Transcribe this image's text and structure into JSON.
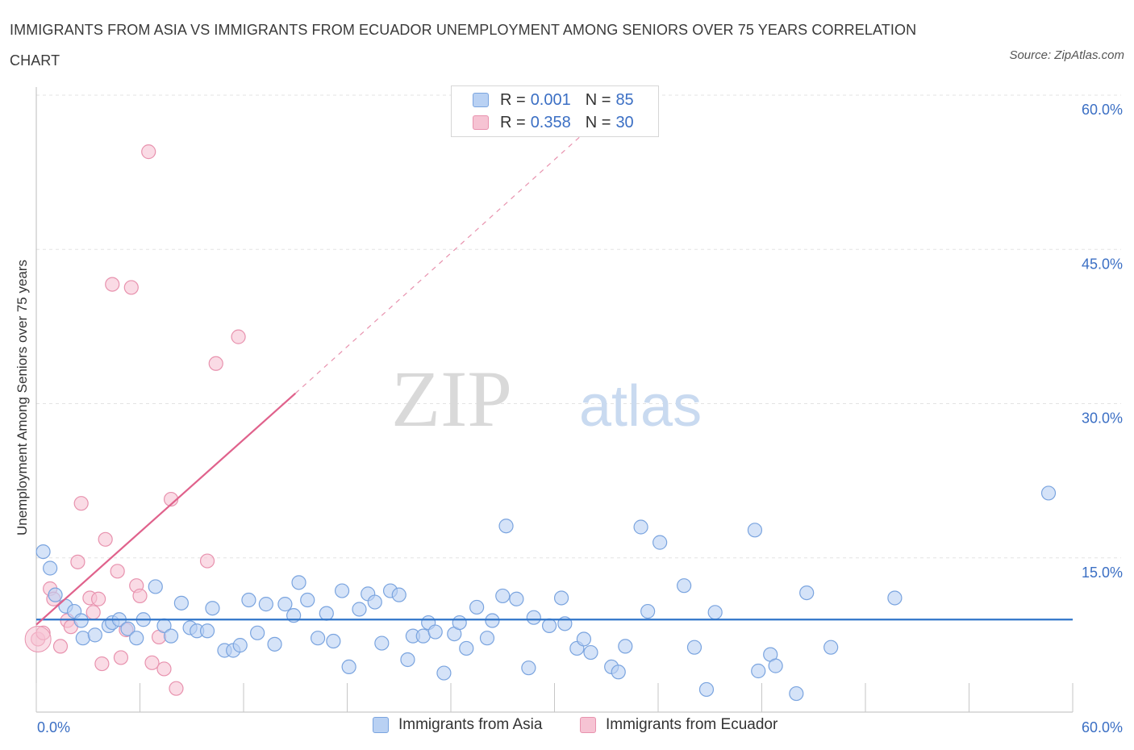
{
  "header": {
    "title": "IMMIGRANTS FROM ASIA VS IMMIGRANTS FROM ECUADOR UNEMPLOYMENT AMONG SENIORS OVER 75 YEARS CORRELATION CHART",
    "source": "Source: ZipAtlas.com"
  },
  "watermark": {
    "zip": "ZIP",
    "atlas": "atlas"
  },
  "legend": {
    "rows": [
      {
        "r_label": "R = ",
        "r_value": "0.001",
        "n_label": "N = ",
        "n_value": "85"
      },
      {
        "r_label": "R = ",
        "r_value": "0.358",
        "n_label": "N = ",
        "n_value": "30"
      }
    ]
  },
  "colors": {
    "asia_fill": "#b9d1f3",
    "asia_stroke": "#7aa4df",
    "asia_line": "#2f74c9",
    "ecuador_fill": "#f6c3d3",
    "ecuador_stroke": "#e892ae",
    "ecuador_line": "#e0628c",
    "tick_label": "#3b6fc4",
    "grid": "#e3e3e3"
  },
  "chart_data": {
    "type": "scatter",
    "title": "IMMIGRANTS FROM ASIA VS IMMIGRANTS FROM ECUADOR UNEMPLOYMENT AMONG SENIORS OVER 75 YEARS CORRELATION CHART",
    "xlabel": "",
    "ylabel": "Unemployment Among Seniors over 75 years",
    "xlim": [
      0,
      60
    ],
    "ylim": [
      0,
      60
    ],
    "x_tick_labels": [
      "0.0%",
      "60.0%"
    ],
    "y_tick_labels": [
      "15.0%",
      "30.0%",
      "45.0%",
      "60.0%"
    ],
    "y_ticks": [
      15,
      30,
      45,
      60
    ],
    "grid": true,
    "legend_position": "top-center",
    "series": [
      {
        "name": "Immigrants from Asia",
        "r": 0.001,
        "n": 85,
        "trend": {
          "x": [
            0,
            60
          ],
          "y": [
            9.0,
            9.0
          ],
          "style": "solid"
        },
        "points": [
          [
            0.4,
            15.6
          ],
          [
            0.8,
            14.0
          ],
          [
            1.1,
            11.4
          ],
          [
            1.7,
            10.3
          ],
          [
            2.2,
            9.8
          ],
          [
            2.6,
            8.9
          ],
          [
            2.7,
            7.2
          ],
          [
            3.4,
            7.5
          ],
          [
            4.2,
            8.4
          ],
          [
            4.4,
            8.7
          ],
          [
            4.8,
            9.0
          ],
          [
            5.3,
            8.1
          ],
          [
            5.8,
            7.2
          ],
          [
            6.2,
            9.0
          ],
          [
            6.9,
            12.2
          ],
          [
            7.4,
            8.4
          ],
          [
            7.8,
            7.4
          ],
          [
            8.4,
            10.6
          ],
          [
            8.9,
            8.2
          ],
          [
            9.3,
            7.9
          ],
          [
            9.9,
            7.9
          ],
          [
            10.2,
            10.1
          ],
          [
            10.9,
            6.0
          ],
          [
            11.4,
            6.0
          ],
          [
            11.8,
            6.5
          ],
          [
            12.3,
            10.9
          ],
          [
            12.8,
            7.7
          ],
          [
            13.3,
            10.5
          ],
          [
            13.8,
            6.6
          ],
          [
            14.4,
            10.5
          ],
          [
            14.9,
            9.4
          ],
          [
            15.2,
            12.6
          ],
          [
            15.7,
            10.9
          ],
          [
            16.3,
            7.2
          ],
          [
            16.8,
            9.6
          ],
          [
            17.2,
            6.9
          ],
          [
            17.7,
            11.8
          ],
          [
            18.1,
            4.4
          ],
          [
            18.7,
            10.0
          ],
          [
            19.2,
            11.5
          ],
          [
            19.6,
            10.7
          ],
          [
            20.0,
            6.7
          ],
          [
            20.5,
            11.8
          ],
          [
            21.0,
            11.4
          ],
          [
            21.5,
            5.1
          ],
          [
            21.8,
            7.4
          ],
          [
            22.4,
            7.4
          ],
          [
            22.7,
            8.7
          ],
          [
            23.1,
            7.8
          ],
          [
            23.6,
            3.8
          ],
          [
            24.2,
            7.6
          ],
          [
            24.5,
            8.7
          ],
          [
            24.9,
            6.2
          ],
          [
            25.5,
            10.2
          ],
          [
            26.1,
            7.2
          ],
          [
            26.4,
            8.9
          ],
          [
            27.0,
            11.3
          ],
          [
            27.2,
            18.1
          ],
          [
            27.8,
            11.0
          ],
          [
            28.5,
            4.3
          ],
          [
            28.8,
            9.2
          ],
          [
            29.7,
            8.4
          ],
          [
            30.4,
            11.1
          ],
          [
            30.6,
            8.6
          ],
          [
            31.3,
            6.2
          ],
          [
            31.7,
            7.1
          ],
          [
            32.1,
            5.8
          ],
          [
            33.3,
            4.4
          ],
          [
            33.7,
            3.9
          ],
          [
            34.1,
            6.4
          ],
          [
            35.0,
            18.0
          ],
          [
            35.4,
            9.8
          ],
          [
            36.1,
            16.5
          ],
          [
            37.5,
            12.3
          ],
          [
            38.1,
            6.3
          ],
          [
            38.8,
            2.2
          ],
          [
            39.3,
            9.7
          ],
          [
            41.6,
            17.7
          ],
          [
            41.8,
            4.0
          ],
          [
            42.5,
            5.6
          ],
          [
            42.8,
            4.5
          ],
          [
            44.0,
            1.8
          ],
          [
            44.6,
            11.6
          ],
          [
            46.0,
            6.3
          ],
          [
            49.7,
            11.1
          ],
          [
            58.6,
            21.3
          ]
        ]
      },
      {
        "name": "Immigrants from Ecuador",
        "r": 0.358,
        "n": 30,
        "trend": {
          "x": [
            0,
            15
          ],
          "y": [
            8.5,
            31.0
          ],
          "extension": {
            "x": [
              15,
              31.5
            ],
            "y": [
              31.0,
              56.0
            ]
          },
          "style": "solid+dashed"
        },
        "points": [
          [
            0.1,
            7.1
          ],
          [
            0.4,
            7.7
          ],
          [
            0.8,
            12.0
          ],
          [
            1.0,
            11.0
          ],
          [
            1.4,
            6.4
          ],
          [
            1.8,
            8.9
          ],
          [
            2.0,
            8.3
          ],
          [
            2.4,
            14.6
          ],
          [
            2.6,
            20.3
          ],
          [
            3.1,
            11.1
          ],
          [
            3.3,
            9.7
          ],
          [
            3.6,
            11.0
          ],
          [
            3.8,
            4.7
          ],
          [
            4.0,
            16.8
          ],
          [
            4.4,
            41.6
          ],
          [
            4.7,
            13.7
          ],
          [
            4.9,
            5.3
          ],
          [
            5.2,
            8.0
          ],
          [
            5.5,
            41.3
          ],
          [
            5.8,
            12.3
          ],
          [
            6.0,
            11.3
          ],
          [
            6.5,
            54.5
          ],
          [
            6.7,
            4.8
          ],
          [
            7.1,
            7.3
          ],
          [
            7.4,
            4.2
          ],
          [
            7.8,
            20.7
          ],
          [
            8.1,
            2.3
          ],
          [
            9.9,
            14.7
          ],
          [
            10.4,
            33.9
          ],
          [
            11.7,
            36.5
          ]
        ]
      }
    ]
  },
  "bottom_legend": {
    "items": [
      "Immigrants from Asia",
      "Immigrants from Ecuador"
    ]
  }
}
